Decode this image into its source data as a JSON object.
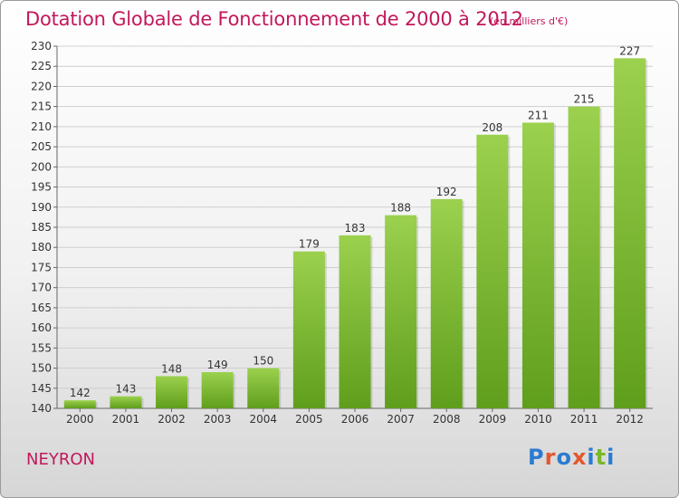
{
  "title": "Dotation Globale de Fonctionnement de 2000 à 2012",
  "subtitle": "(en milliers d'€)",
  "commune": "NEYRON",
  "logo": {
    "text": "Proxiti",
    "colors": [
      "#2a7bd1",
      "#e2582f",
      "#2a7bd1",
      "#e2582f",
      "#2a7bd1",
      "#78b82a",
      "#2a7bd1"
    ]
  },
  "chart_data": {
    "type": "bar",
    "categories": [
      "2000",
      "2001",
      "2002",
      "2003",
      "2004",
      "2005",
      "2006",
      "2007",
      "2008",
      "2009",
      "2010",
      "2011",
      "2012"
    ],
    "values": [
      142,
      143,
      148,
      149,
      150,
      179,
      183,
      188,
      192,
      208,
      211,
      215,
      227
    ],
    "ylim": [
      140,
      230
    ],
    "ytick_step": 5,
    "grid": true,
    "bar_color": "#7cb93a"
  }
}
